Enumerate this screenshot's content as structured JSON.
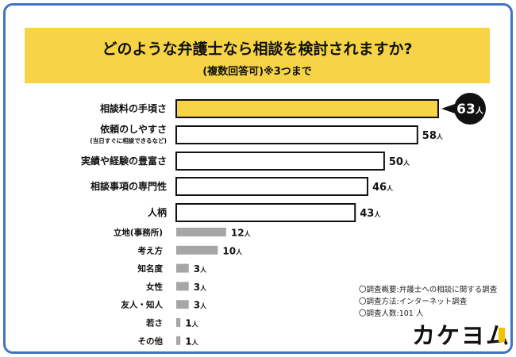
{
  "title": "どのような弁護士なら相談を検討されますか?",
  "subtitle": "(複数回答可)※3つまで",
  "chart_data": {
    "type": "bar",
    "orientation": "horizontal",
    "title": "どのような弁護士なら相談を検討されますか?",
    "subtitle": "(複数回答可)※3つまで",
    "unit": "人",
    "categories": [
      "相談料の手頃さ",
      "依頼のしやすさ",
      "実績や経験の豊富さ",
      "相談事項の専門性",
      "人柄",
      "立地(事務所)",
      "考え方",
      "知名度",
      "女性",
      "友人・知人",
      "若さ",
      "その他"
    ],
    "sublabels": [
      "",
      "(当日すぐに相談できるなど)",
      "",
      "",
      "",
      "",
      "",
      "",
      "",
      "",
      "",
      ""
    ],
    "values": [
      63,
      58,
      50,
      46,
      43,
      12,
      10,
      3,
      3,
      3,
      1,
      1
    ],
    "highlight_index": 0,
    "colors": {
      "highlight": "#f7d445",
      "major": "#ffffff",
      "minor": "#a6a6a6",
      "border": "#111111",
      "frame": "#3f74c4"
    }
  },
  "notes": [
    "〇調査概要:弁護士への相談に関する調査",
    "〇調査方法:インターネット調査",
    "〇調査人数:101 人"
  ],
  "logo": "カケヨム"
}
